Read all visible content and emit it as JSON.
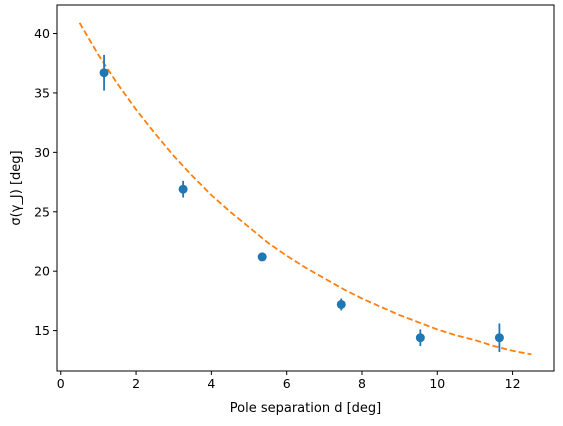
{
  "chart_data": {
    "type": "scatter",
    "xlabel": "Pole separation d [deg]",
    "ylabel": "σ(γ_J) [deg]",
    "xlim": [
      -0.1,
      13.1
    ],
    "ylim": [
      11.6,
      42.4
    ],
    "xticks": [
      0,
      2,
      4,
      6,
      8,
      10,
      12
    ],
    "yticks": [
      15,
      20,
      25,
      30,
      35,
      40
    ],
    "grid": false,
    "series": [
      {
        "kind": "errorbar",
        "color": "#1f77b4",
        "x": [
          1.15,
          3.25,
          5.35,
          7.45,
          9.55,
          11.65
        ],
        "y": [
          36.7,
          26.9,
          21.2,
          17.2,
          14.4,
          14.4
        ],
        "yerr": [
          1.5,
          0.7,
          0.3,
          0.5,
          0.7,
          1.2
        ]
      },
      {
        "kind": "fit",
        "color": "#ff7f0e",
        "style": "dashed",
        "x": [
          0.5,
          1.0,
          1.5,
          2.0,
          2.5,
          3.0,
          3.5,
          4.0,
          4.5,
          5.0,
          5.5,
          6.0,
          6.5,
          7.0,
          7.5,
          8.0,
          8.5,
          9.0,
          9.5,
          10.0,
          10.5,
          11.0,
          11.5,
          12.0,
          12.5
        ],
        "y": [
          40.9,
          38.2,
          35.8,
          33.6,
          31.6,
          29.7,
          28.0,
          26.4,
          25.0,
          23.7,
          22.4,
          21.3,
          20.3,
          19.4,
          18.5,
          17.7,
          17.0,
          16.3,
          15.7,
          15.1,
          14.6,
          14.2,
          13.7,
          13.3,
          13.0
        ]
      }
    ]
  }
}
